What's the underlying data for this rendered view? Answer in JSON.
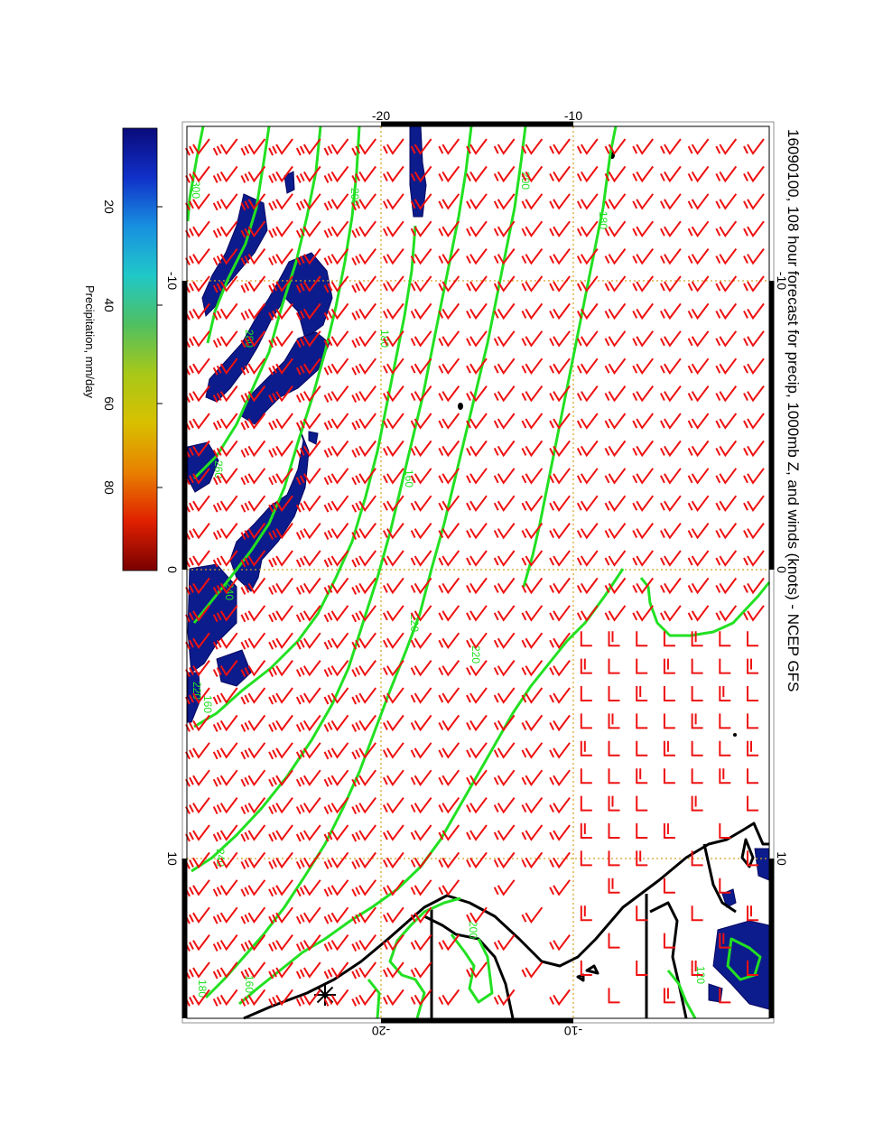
{
  "title": "16090100, 108 hour forecast for precip, 1000mb Z, and winds (knots) - NCEP GFS",
  "colorbar": {
    "label": "Precipitation, mm/day",
    "ticks": [
      "20",
      "40",
      "60",
      "80"
    ],
    "colors": [
      "#0a0a7a",
      "#1030c8",
      "#1890e0",
      "#20c8c8",
      "#50c060",
      "#a8c818",
      "#d8c000",
      "#e88000",
      "#e02000",
      "#7a0000"
    ]
  },
  "axes": {
    "longitude_ticks": [
      "-10",
      "0",
      "10"
    ],
    "latitude_ticks": [
      "-20",
      "-10"
    ]
  },
  "contours": {
    "color": "#22e022",
    "labels": [
      "300",
      "280",
      "260",
      "240",
      "220",
      "200",
      "180",
      "160",
      "220",
      "200",
      "180",
      "160",
      "240",
      "220",
      "200",
      "180",
      "160",
      "120"
    ]
  },
  "wind_barbs": {
    "color": "#ee1111"
  },
  "precip_color": "#0c1c8c",
  "coast_color": "#000000"
}
